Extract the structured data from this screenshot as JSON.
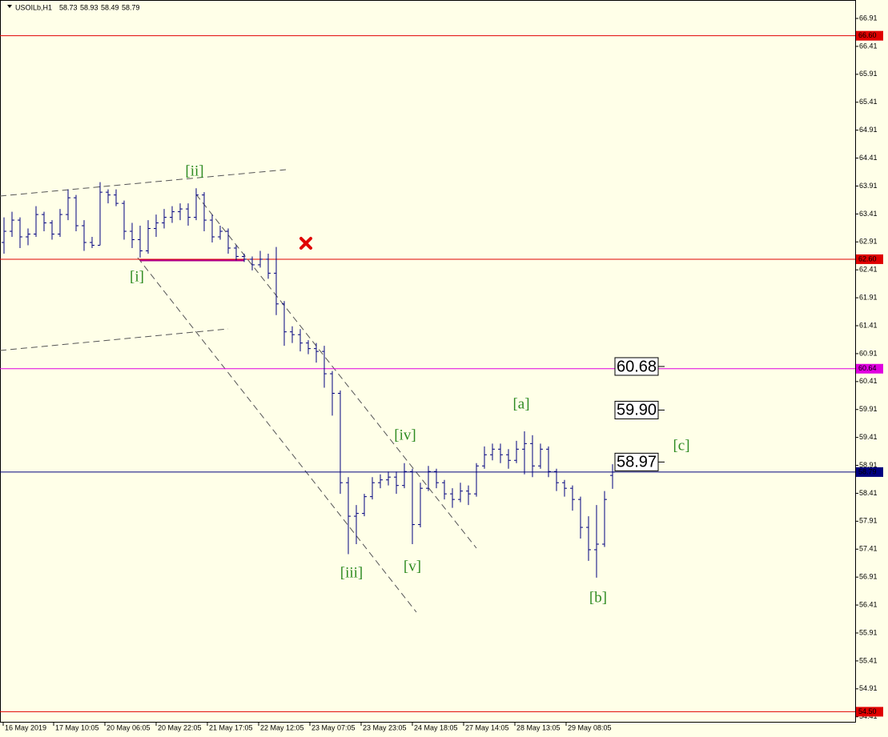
{
  "chart_data": {
    "type": "ohlc",
    "title": "USOILb,H1",
    "header_values": [
      58.73,
      58.93,
      58.49,
      58.79
    ],
    "color": "#000080",
    "xlim": [
      -0.5,
      106.3
    ],
    "xticks": [
      {
        "value": -0.1,
        "label": "16 May 2019"
      },
      {
        "value": 6.2,
        "label": "17 May 10:05"
      },
      {
        "value": 12.6,
        "label": "20 May 06:05"
      },
      {
        "value": 19,
        "label": "20 May 22:05"
      },
      {
        "value": 25.4,
        "label": "21 May 17:05"
      },
      {
        "value": 31.8,
        "label": "22 May 12:05"
      },
      {
        "value": 38.2,
        "label": "23 May 07:05"
      },
      {
        "value": 44.6,
        "label": "23 May 23:05"
      },
      {
        "value": 51,
        "label": "24 May 18:05"
      },
      {
        "value": 57.4,
        "label": "27 May 14:05"
      },
      {
        "value": 63.8,
        "label": "28 May 13:05"
      },
      {
        "value": 70.2,
        "label": "29 May 08:05"
      }
    ],
    "ylim": [
      54.32,
      67.24
    ],
    "yticks": [
      66.91,
      66.41,
      65.91,
      65.41,
      64.91,
      64.41,
      63.91,
      63.41,
      62.91,
      62.41,
      61.91,
      61.41,
      60.91,
      60.41,
      59.91,
      59.41,
      58.91,
      58.41,
      57.91,
      57.41,
      56.91,
      56.41,
      55.91,
      55.41,
      54.91,
      54.41
    ],
    "open": [
      62.9,
      63.1,
      63.3,
      63.0,
      63.05,
      63.4,
      63.25,
      63.05,
      63.4,
      63.7,
      63.2,
      62.9,
      62.85,
      63.8,
      63.75,
      63.6,
      63.1,
      62.95,
      62.75,
      63.15,
      63.25,
      63.35,
      63.45,
      63.5,
      63.35,
      63.75,
      63.3,
      63.0,
      63.1,
      62.8,
      62.65,
      62.6,
      62.5,
      62.6,
      62.35,
      61.8,
      61.3,
      61.25,
      61.1,
      61.0,
      60.95,
      60.55,
      60.2,
      58.6,
      58.0,
      58.05,
      58.35,
      58.6,
      58.65,
      58.7,
      58.55,
      58.8,
      57.85,
      58.5,
      58.8,
      58.6,
      58.4,
      58.3,
      58.45,
      58.4,
      58.9,
      59.1,
      59.2,
      59.1,
      59.0,
      59.2,
      59.3,
      58.9,
      59.2,
      58.8,
      58.6,
      58.5,
      58.3,
      57.8,
      57.4,
      57.5,
      58.73
    ],
    "high": [
      63.35,
      63.45,
      63.35,
      63.15,
      63.55,
      63.45,
      63.3,
      63.5,
      63.85,
      63.75,
      63.3,
      63.0,
      63.98,
      63.85,
      63.85,
      63.65,
      63.25,
      63.2,
      63.3,
      63.4,
      63.5,
      63.55,
      63.6,
      63.6,
      63.87,
      63.8,
      63.4,
      63.2,
      63.15,
      62.85,
      62.7,
      62.65,
      62.75,
      62.7,
      62.82,
      61.85,
      61.4,
      61.35,
      61.15,
      61.1,
      61.05,
      60.6,
      60.25,
      58.7,
      58.2,
      58.4,
      58.7,
      58.75,
      58.8,
      58.8,
      58.95,
      58.85,
      58.6,
      58.9,
      58.85,
      58.65,
      58.5,
      58.6,
      58.55,
      58.95,
      59.25,
      59.3,
      59.3,
      59.2,
      59.35,
      59.52,
      59.45,
      59.3,
      59.25,
      58.85,
      58.65,
      58.55,
      58.35,
      58.0,
      58.2,
      58.45,
      58.93
    ],
    "low": [
      62.7,
      63.0,
      62.8,
      62.85,
      63.0,
      63.1,
      62.95,
      63.0,
      63.3,
      63.1,
      62.75,
      62.8,
      62.85,
      63.6,
      63.55,
      62.95,
      62.8,
      62.63,
      62.7,
      63.0,
      63.15,
      63.25,
      63.3,
      63.2,
      63.3,
      63.1,
      62.9,
      62.95,
      62.7,
      62.58,
      62.55,
      62.4,
      62.45,
      62.25,
      61.6,
      61.05,
      61.1,
      60.95,
      60.9,
      60.75,
      60.3,
      59.8,
      58.4,
      57.32,
      57.5,
      58.0,
      58.3,
      58.5,
      58.55,
      58.4,
      58.5,
      57.5,
      57.8,
      58.45,
      58.5,
      58.3,
      58.15,
      58.25,
      58.2,
      58.35,
      58.85,
      59.0,
      58.95,
      58.85,
      58.95,
      58.75,
      58.7,
      58.85,
      58.7,
      58.45,
      58.35,
      58.1,
      57.6,
      57.2,
      56.9,
      57.45,
      58.49
    ],
    "close": [
      63.1,
      63.3,
      63.0,
      63.05,
      63.4,
      63.25,
      63.05,
      63.4,
      63.7,
      63.2,
      62.9,
      62.85,
      63.8,
      63.75,
      63.6,
      63.1,
      62.95,
      62.75,
      63.15,
      63.25,
      63.35,
      63.45,
      63.5,
      63.35,
      63.75,
      63.3,
      63.0,
      63.1,
      62.8,
      62.65,
      62.6,
      62.5,
      62.6,
      62.35,
      61.8,
      61.3,
      61.25,
      61.1,
      61.0,
      60.95,
      60.55,
      60.2,
      58.6,
      58.0,
      58.05,
      58.35,
      58.6,
      58.65,
      58.7,
      58.55,
      58.8,
      57.85,
      58.5,
      58.8,
      58.6,
      58.4,
      58.3,
      58.45,
      58.4,
      58.9,
      59.1,
      59.2,
      59.1,
      59.0,
      59.2,
      59.3,
      58.9,
      59.2,
      58.8,
      58.6,
      58.5,
      58.3,
      57.8,
      57.4,
      57.5,
      58.3,
      58.79
    ],
    "levels": [
      {
        "value": 66.6,
        "label": "66.60",
        "color": "#e00000"
      },
      {
        "value": 62.6,
        "label": "62.60",
        "color": "#e00000"
      },
      {
        "value": 60.64,
        "label": "60.64",
        "color": "#e000e0"
      },
      {
        "value": 58.79,
        "label": "58.79",
        "color": "#000080"
      },
      {
        "value": 54.5,
        "label": "54.50",
        "color": "#e00000"
      }
    ],
    "targets": [
      60.68,
      {
        "value": 59.9,
        "label": "59.90"
      },
      58.97
    ],
    "annotations": [
      "[ii]",
      "[i]",
      "[iii]",
      "[iv]",
      "[v]",
      "[a]",
      "[b]",
      "[c]"
    ]
  }
}
